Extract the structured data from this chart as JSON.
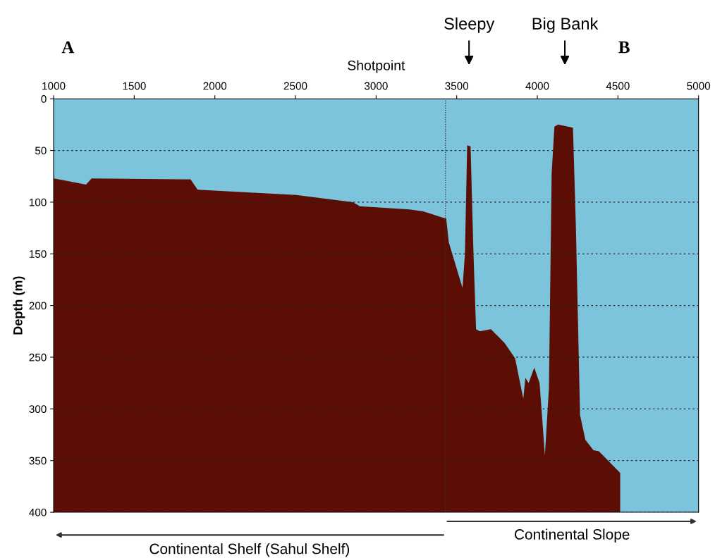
{
  "chart_data": {
    "type": "area",
    "xlabel": "Shotpoint",
    "ylabel": "Depth (m)",
    "x": [
      1000,
      1201,
      1236,
      1849,
      1893,
      2505,
      2856,
      2899,
      3206,
      3293,
      3435,
      3451,
      3536,
      3551,
      3565,
      3586,
      3604,
      3620,
      3644,
      3712,
      3796,
      3862,
      3913,
      3926,
      3946,
      3981,
      4014,
      4047,
      4072,
      4089,
      4106,
      4129,
      4221,
      4239,
      4265,
      4298,
      4348,
      4382,
      4514,
      4514,
      5000
    ],
    "series": [
      {
        "color": "#7cc3dc",
        "values": [
          77,
          83,
          77,
          78,
          88,
          93,
          100,
          104,
          107,
          109,
          116,
          139,
          183,
          150,
          45,
          46,
          150,
          223,
          225,
          223,
          236,
          251,
          290,
          270,
          275,
          260,
          275,
          345,
          280,
          72,
          27,
          25,
          28,
          123,
          306,
          330,
          340,
          341,
          362,
          400,
          400
        ]
      }
    ],
    "xlim": [
      1000,
      5000
    ],
    "xticks": [
      1000,
      1500,
      2000,
      2500,
      3000,
      3500,
      4000,
      4500,
      5000
    ],
    "ylim": [
      400,
      0
    ],
    "yticks": [
      0,
      50,
      100,
      150,
      200,
      250,
      300,
      350,
      400
    ],
    "grid": "y",
    "ref_lines": [
      {
        "axis": "x",
        "value": 3430,
        "line_style": "dotted",
        "color": "#333333"
      }
    ],
    "annotations": [
      "A",
      "Sleepy",
      "Big Bank",
      "B",
      "Continental Shelf (Sahul Shelf)",
      "Continental Slope"
    ]
  }
}
